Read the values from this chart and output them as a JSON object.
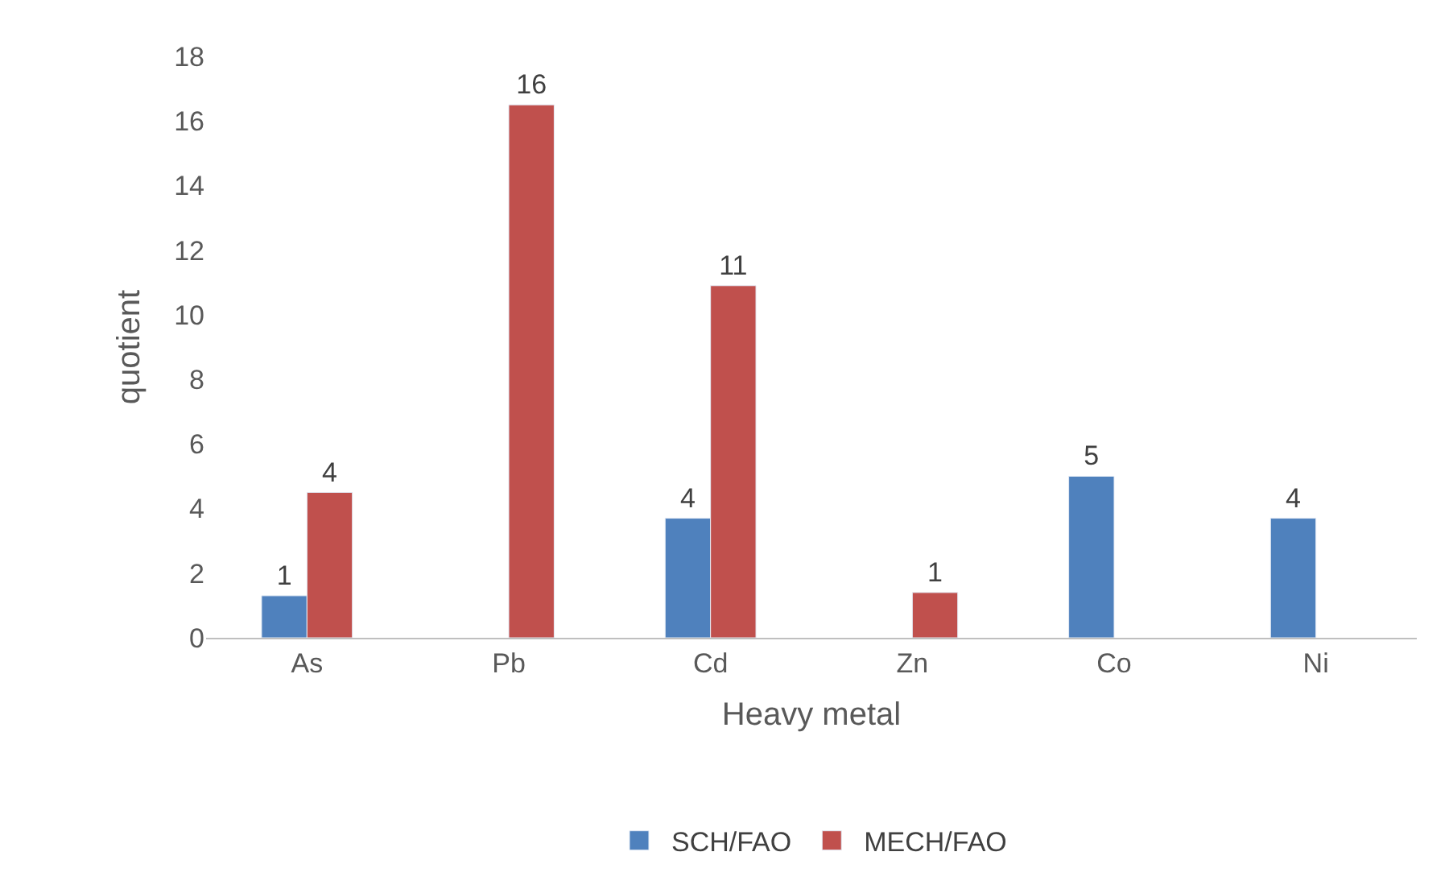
{
  "chart_data": {
    "type": "bar",
    "xlabel": "Heavy metal",
    "ylabel": "quotient",
    "categories": [
      "As",
      "Pb",
      "Cd",
      "Zn",
      "Co",
      "Ni"
    ],
    "series": [
      {
        "name": "SCH/FAO",
        "color": "#4f81bd",
        "values": [
          1.3,
          null,
          3.7,
          null,
          5.0,
          3.7
        ],
        "value_labels": [
          "1",
          null,
          "4",
          null,
          "5",
          "4"
        ]
      },
      {
        "name": "MECH/FAO",
        "color": "#c0504d",
        "values": [
          4.5,
          16.5,
          10.9,
          1.4,
          null,
          null
        ],
        "value_labels": [
          "4",
          "16",
          "11",
          "1",
          null,
          null
        ]
      }
    ],
    "ylim": [
      0,
      18
    ],
    "yticks": [
      0,
      2,
      4,
      6,
      8,
      10,
      12,
      14,
      16,
      18
    ],
    "legend": "bottom"
  }
}
